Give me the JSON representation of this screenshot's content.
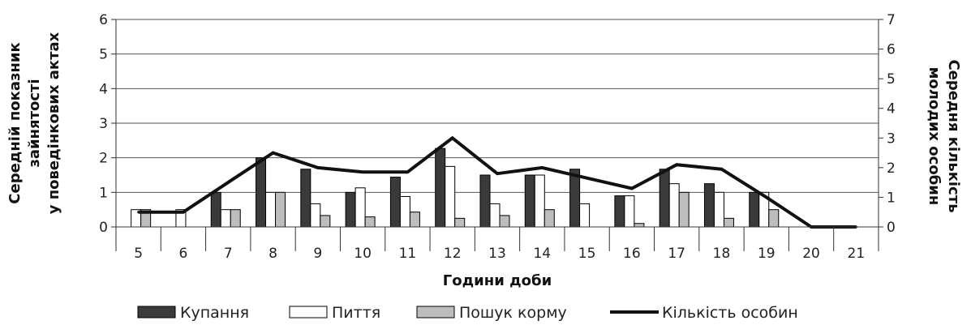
{
  "chart_data": {
    "type": "bar",
    "categories": [
      "5",
      "6",
      "7",
      "8",
      "9",
      "10",
      "11",
      "12",
      "13",
      "14",
      "15",
      "16",
      "17",
      "18",
      "19",
      "20",
      "21"
    ],
    "series": [
      {
        "name": "Купання",
        "kind": "bar",
        "axis": "left",
        "color": "#3a3a3a",
        "values": [
          0,
          0,
          1.0,
          2.0,
          1.67,
          1.0,
          1.44,
          2.27,
          1.5,
          1.5,
          1.67,
          0.9,
          1.67,
          1.25,
          1.0,
          0,
          0
        ]
      },
      {
        "name": "Пиття",
        "kind": "bar",
        "axis": "left",
        "color": "#ffffff",
        "values": [
          0.5,
          0.5,
          0.5,
          1.0,
          0.67,
          1.13,
          0.88,
          1.75,
          0.67,
          1.5,
          0.67,
          0.9,
          1.25,
          1.0,
          1.0,
          0,
          0
        ]
      },
      {
        "name": "Пошук корму",
        "kind": "bar",
        "axis": "left",
        "color": "#bdbdbd",
        "values": [
          0.5,
          0,
          0.5,
          1.0,
          0.33,
          0.29,
          0.43,
          0.25,
          0.33,
          0.5,
          0,
          0.1,
          1.0,
          0.25,
          0.5,
          0,
          0
        ]
      },
      {
        "name": "Кількість особин",
        "kind": "line",
        "axis": "right",
        "color": "#111111",
        "values": [
          0.5,
          0.5,
          1.5,
          2.5,
          2.0,
          1.85,
          1.85,
          3.0,
          1.8,
          2.0,
          1.65,
          1.3,
          2.1,
          1.95,
          1.0,
          0,
          0
        ]
      }
    ],
    "xlabel": "Години доби",
    "ylabel": "Середній  показник зайнятості у поведінкових актах",
    "ylabel_lines": [
      "Середній  показник",
      "зайнятості",
      "у поведінкових актах"
    ],
    "y2label": "Середня кількість молодих особин",
    "y2label_lines": [
      "Середня кількість",
      "молодих особин"
    ],
    "ylim": [
      0,
      6
    ],
    "yticks": [
      "0",
      "1",
      "2",
      "3",
      "4",
      "5",
      "6"
    ],
    "y2lim": [
      0,
      7
    ],
    "y2ticks": [
      "0",
      "1",
      "2",
      "3",
      "4",
      "5",
      "6",
      "7"
    ],
    "grid": "horizontal",
    "legend_position": "bottom"
  }
}
